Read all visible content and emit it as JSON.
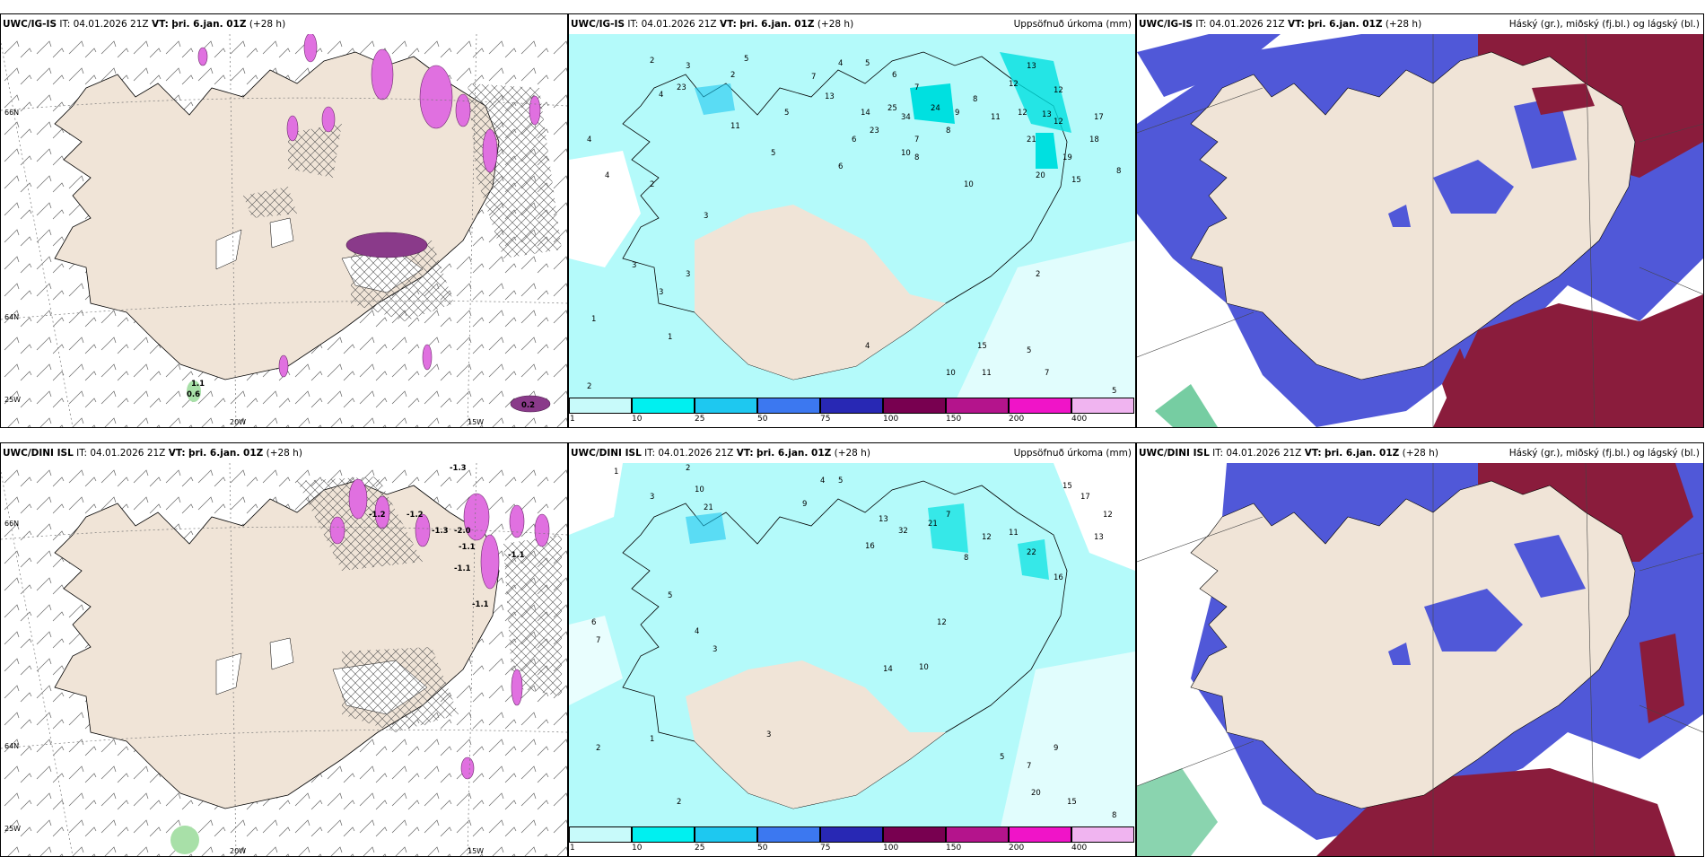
{
  "panels": [
    {
      "id": "p1",
      "model": "UWC/IG-IS",
      "it": "IT: 04.01.2026 21Z",
      "vt_label": "VT:",
      "vt": "þri. 6.jan. 01Z",
      "lead": "(+28 h)",
      "right_title": "",
      "grid_labels": [
        "66N",
        "64N",
        "25W",
        "20W",
        "15W"
      ],
      "values": [
        "1.1",
        "0.6",
        "0.2"
      ]
    },
    {
      "id": "p2",
      "model": "UWC/IG-IS",
      "it": "IT: 04.01.2026 21Z",
      "vt_label": "VT:",
      "vt": "þri. 6.jan. 01Z",
      "lead": "(+28 h)",
      "right_title": "Uppsöfnuð úrkoma (mm)",
      "values": [
        "2",
        "3",
        "4",
        "5",
        "2",
        "4",
        "5",
        "6",
        "7",
        "13",
        "5",
        "7",
        "12",
        "13",
        "12",
        "8",
        "12",
        "17",
        "23",
        "25",
        "34",
        "24",
        "14",
        "23",
        "11",
        "8",
        "9",
        "12",
        "21",
        "13",
        "11",
        "5",
        "6",
        "8",
        "10",
        "6",
        "7",
        "18",
        "19",
        "15",
        "20",
        "10",
        "3",
        "2",
        "4",
        "4",
        "1",
        "2",
        "3",
        "15",
        "10",
        "11",
        "7",
        "5",
        "2",
        "4",
        "1",
        "3",
        "3",
        "5",
        "8"
      ]
    },
    {
      "id": "p3",
      "model": "UWC/IG-IS",
      "it": "IT: 04.01.2026 21Z",
      "vt_label": "VT:",
      "vt": "þri. 6.jan. 01Z",
      "lead": "(+28 h)",
      "right_title": "Háský (gr.), miðský (fj.bl.) og lágský (bl.)"
    },
    {
      "id": "p4",
      "model": "UWC/DINI ISL",
      "it": "IT: 04.01.2026 21Z",
      "vt_label": "VT:",
      "vt": "þri. 6.jan. 01Z",
      "lead": "(+28 h)",
      "right_title": "",
      "grid_labels": [
        "66N",
        "64N",
        "25W",
        "20W",
        "15W"
      ],
      "values": [
        "-1.3",
        "-1.2",
        "-1.2",
        "-1.3",
        "-2.0",
        "-1.1",
        "-1.1",
        "-1.1",
        "-1.1"
      ]
    },
    {
      "id": "p5",
      "model": "UWC/DINI ISL",
      "it": "IT: 04.01.2026 21Z",
      "vt_label": "VT:",
      "vt": "þri. 6.jan. 01Z",
      "lead": "(+28 h)",
      "right_title": "Uppsöfnuð úrkoma (mm)",
      "values": [
        "1",
        "2",
        "3",
        "10",
        "21",
        "9",
        "4",
        "5",
        "13",
        "32",
        "21",
        "7",
        "12",
        "11",
        "8",
        "22",
        "16",
        "15",
        "17",
        "12",
        "13",
        "14",
        "10",
        "16",
        "12",
        "3",
        "4",
        "6",
        "7",
        "5",
        "1",
        "2",
        "20",
        "15",
        "8",
        "9",
        "7",
        "5",
        "3",
        "2"
      ]
    },
    {
      "id": "p6",
      "model": "UWC/DINI ISL",
      "it": "IT: 04.01.2026 21Z",
      "vt_label": "VT:",
      "vt": "þri. 6.jan. 01Z",
      "lead": "(+28 h)",
      "right_title": "Háský (gr.), miðský (fj.bl.) og lágský (bl.)"
    }
  ],
  "legend": {
    "ticks": [
      "1",
      "10",
      "25",
      "50",
      "75",
      "100",
      "150",
      "200",
      "400"
    ],
    "colors": [
      "#c8fafa",
      "#00f0f0",
      "#1ec8f0",
      "#3c78f0",
      "#2828b4",
      "#780050",
      "#b4148c",
      "#f014c8",
      "#f0b4f0"
    ]
  }
}
